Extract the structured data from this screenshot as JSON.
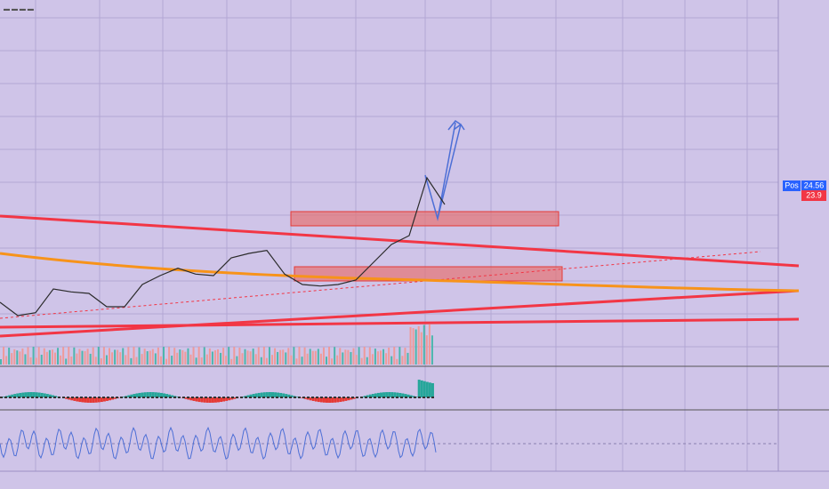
{
  "chart_data": {
    "type": "line",
    "series": [
      {
        "color": "#2b2b2b",
        "values": [
          16.7,
          15.8,
          16.0,
          17.6,
          17.4,
          17.3,
          16.4,
          16.4,
          17.9,
          18.5,
          19.0,
          18.6,
          18.5,
          19.7,
          20.0,
          20.2,
          18.6,
          17.9,
          17.8,
          17.9,
          18.2,
          19.4,
          20.6,
          21.2,
          25.1,
          23.3
        ]
      }
    ],
    "ylim": [
      12.5,
      37.1
    ],
    "price_labels": [
      {
        "tag": "Pos",
        "value": 24.56,
        "color": "#2962ff"
      },
      {
        "value": 23.9,
        "color": "#f23645"
      }
    ]
  }
}
